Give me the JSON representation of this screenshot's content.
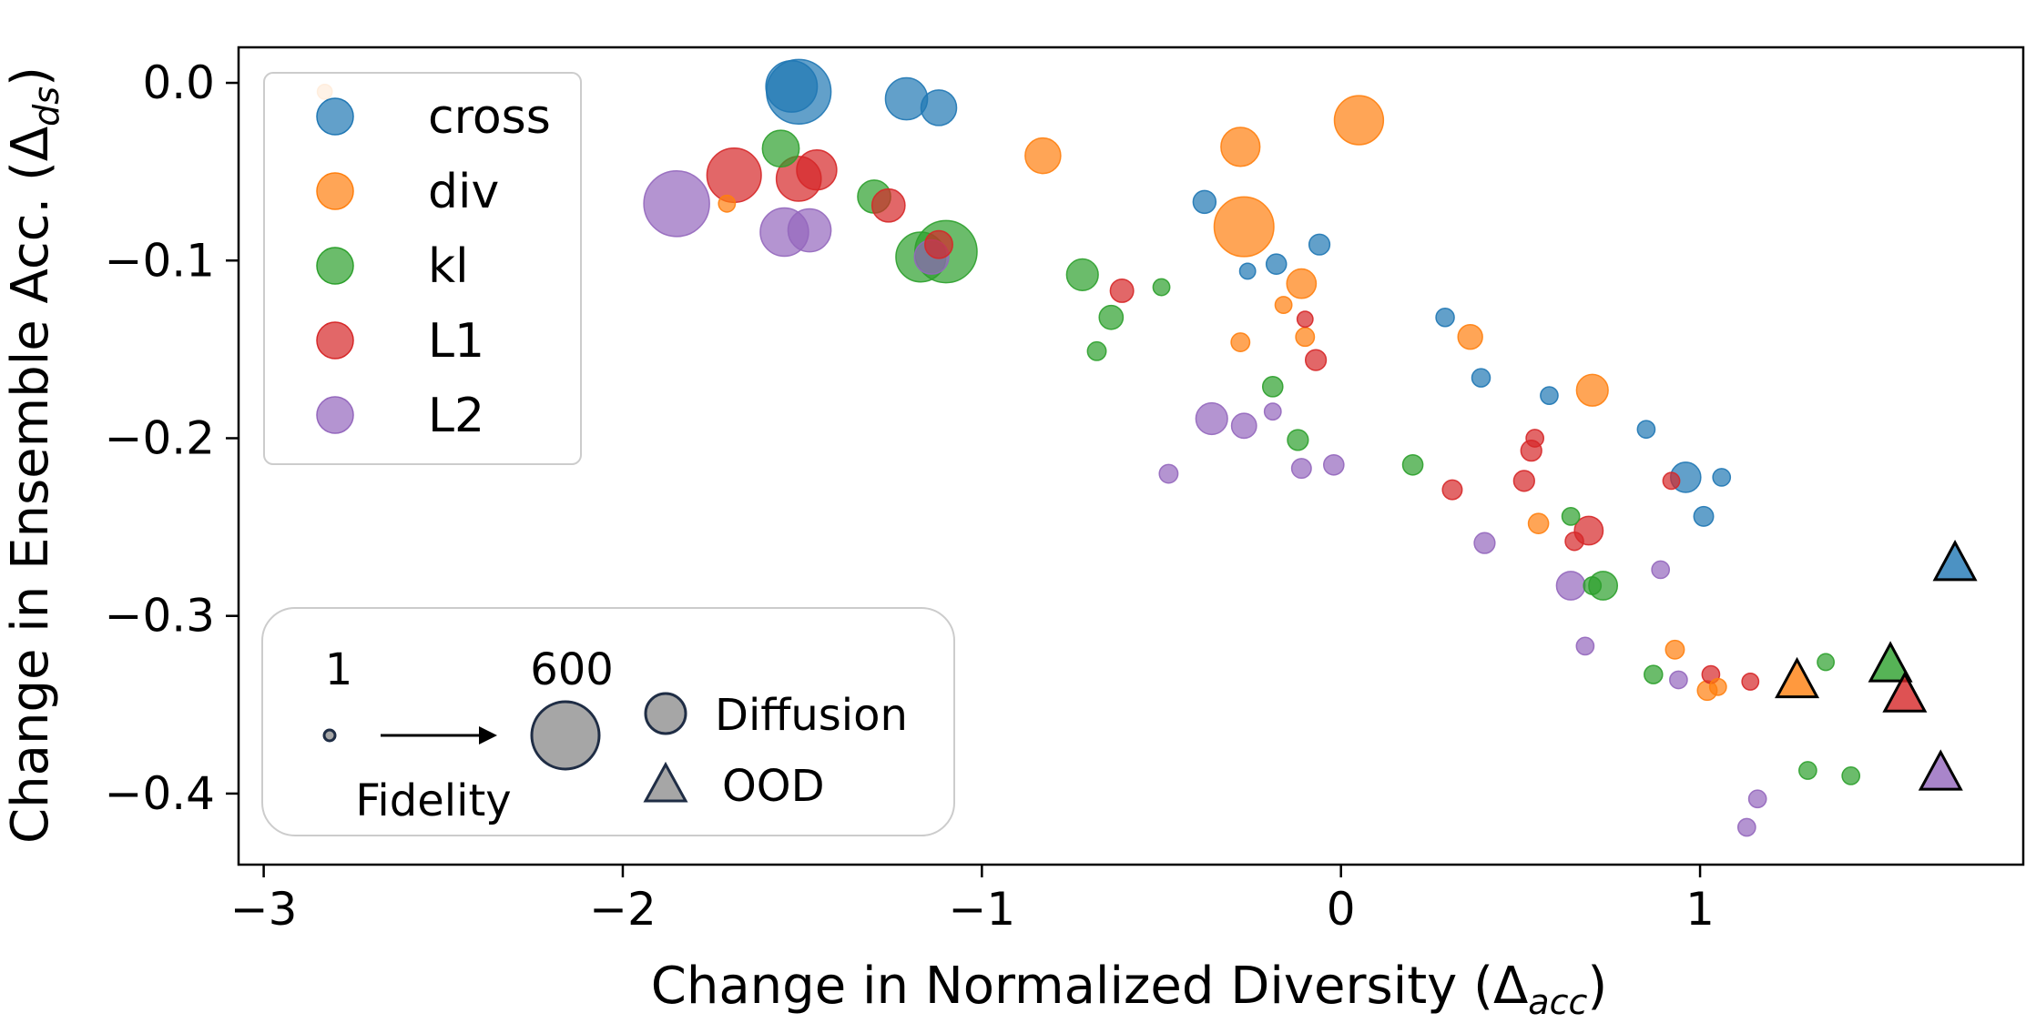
{
  "chart_data": {
    "type": "scatter",
    "title": "",
    "xlabel": "Change in Normalized Diversity (",
    "xlabel_math": "Δ",
    "xlabel_sub": "acc",
    "xlabel_close": ")",
    "ylabel": "Change in Ensemble Acc. (",
    "ylabel_math": "Δ",
    "ylabel_sub": "ds",
    "ylabel_close": ")",
    "xlim": [
      -3.07,
      1.9
    ],
    "ylim": [
      -0.44,
      0.02
    ],
    "xticks": [
      {
        "value": -3,
        "label": "−3"
      },
      {
        "value": -2,
        "label": "−2"
      },
      {
        "value": -1,
        "label": "−1"
      },
      {
        "value": 0,
        "label": "0"
      },
      {
        "value": 1,
        "label": "1"
      }
    ],
    "yticks": [
      {
        "value": 0.0,
        "label": "0.0"
      },
      {
        "value": -0.1,
        "label": "−0.1"
      },
      {
        "value": -0.2,
        "label": "−0.2"
      },
      {
        "value": -0.3,
        "label": "−0.3"
      },
      {
        "value": -0.4,
        "label": "−0.4"
      }
    ],
    "grid": false,
    "legend_position": "top-left",
    "series": [
      {
        "name": "cross",
        "color": "#1f77b4",
        "diffusion": [
          {
            "x": -1.51,
            "y": -0.005,
            "fidelity": 480
          },
          {
            "x": -1.53,
            "y": -0.002,
            "fidelity": 280
          },
          {
            "x": -1.21,
            "y": -0.009,
            "fidelity": 170
          },
          {
            "x": -1.12,
            "y": -0.014,
            "fidelity": 110
          },
          {
            "x": -0.38,
            "y": -0.067,
            "fidelity": 30
          },
          {
            "x": -0.18,
            "y": -0.102,
            "fidelity": 20
          },
          {
            "x": -0.26,
            "y": -0.106,
            "fidelity": 8
          },
          {
            "x": -0.06,
            "y": -0.091,
            "fidelity": 22
          },
          {
            "x": 0.29,
            "y": -0.132,
            "fidelity": 14
          },
          {
            "x": 0.39,
            "y": -0.166,
            "fidelity": 14
          },
          {
            "x": 0.58,
            "y": -0.176,
            "fidelity": 12
          },
          {
            "x": 0.85,
            "y": -0.195,
            "fidelity": 12
          },
          {
            "x": 0.96,
            "y": -0.222,
            "fidelity": 70
          },
          {
            "x": 1.06,
            "y": -0.222,
            "fidelity": 12
          },
          {
            "x": 1.01,
            "y": -0.244,
            "fidelity": 18
          }
        ],
        "ood": {
          "x": 1.71,
          "y": -0.27
        }
      },
      {
        "name": "div",
        "color": "#ff7f0e",
        "diffusion": [
          {
            "x": -2.83,
            "y": -0.005,
            "fidelity": 6
          },
          {
            "x": 0.05,
            "y": -0.021,
            "fidelity": 250
          },
          {
            "x": -0.28,
            "y": -0.036,
            "fidelity": 140
          },
          {
            "x": -0.83,
            "y": -0.041,
            "fidelity": 110
          },
          {
            "x": -0.27,
            "y": -0.081,
            "fidelity": 400
          },
          {
            "x": -0.11,
            "y": -0.113,
            "fidelity": 65
          },
          {
            "x": -0.16,
            "y": -0.125,
            "fidelity": 10
          },
          {
            "x": -0.1,
            "y": -0.143,
            "fidelity": 15
          },
          {
            "x": -0.28,
            "y": -0.146,
            "fidelity": 15
          },
          {
            "x": 0.36,
            "y": -0.143,
            "fidelity": 38
          },
          {
            "x": 0.7,
            "y": -0.173,
            "fidelity": 80
          },
          {
            "x": 0.55,
            "y": -0.248,
            "fidelity": 20
          },
          {
            "x": 0.93,
            "y": -0.319,
            "fidelity": 15
          },
          {
            "x": 1.02,
            "y": -0.342,
            "fidelity": 18
          },
          {
            "x": 1.05,
            "y": -0.34,
            "fidelity": 10
          },
          {
            "x": -1.71,
            "y": -0.068,
            "fidelity": 10
          }
        ],
        "ood": {
          "x": 1.27,
          "y": -0.336
        }
      },
      {
        "name": "kl",
        "color": "#2ca02c",
        "diffusion": [
          {
            "x": -1.56,
            "y": -0.037,
            "fidelity": 120
          },
          {
            "x": -1.3,
            "y": -0.064,
            "fidelity": 90
          },
          {
            "x": -1.1,
            "y": -0.095,
            "fidelity": 440
          },
          {
            "x": -1.17,
            "y": -0.098,
            "fidelity": 260
          },
          {
            "x": -0.72,
            "y": -0.108,
            "fidelity": 80
          },
          {
            "x": -0.5,
            "y": -0.115,
            "fidelity": 10
          },
          {
            "x": -0.64,
            "y": -0.132,
            "fidelity": 35
          },
          {
            "x": -0.68,
            "y": -0.151,
            "fidelity": 15
          },
          {
            "x": -0.19,
            "y": -0.171,
            "fidelity": 20
          },
          {
            "x": -0.12,
            "y": -0.201,
            "fidelity": 22
          },
          {
            "x": 0.2,
            "y": -0.215,
            "fidelity": 20
          },
          {
            "x": 0.64,
            "y": -0.244,
            "fidelity": 12
          },
          {
            "x": 0.73,
            "y": -0.283,
            "fidelity": 60
          },
          {
            "x": 0.7,
            "y": -0.283,
            "fidelity": 12
          },
          {
            "x": 0.87,
            "y": -0.333,
            "fidelity": 14
          },
          {
            "x": 1.35,
            "y": -0.326,
            "fidelity": 10
          },
          {
            "x": 1.3,
            "y": -0.387,
            "fidelity": 12
          },
          {
            "x": 1.42,
            "y": -0.39,
            "fidelity": 12
          }
        ],
        "ood": {
          "x": 1.53,
          "y": -0.327
        }
      },
      {
        "name": "L1",
        "color": "#d62728",
        "diffusion": [
          {
            "x": -1.69,
            "y": -0.052,
            "fidelity": 320
          },
          {
            "x": -1.46,
            "y": -0.049,
            "fidelity": 150
          },
          {
            "x": -1.51,
            "y": -0.054,
            "fidelity": 200
          },
          {
            "x": -1.26,
            "y": -0.069,
            "fidelity": 90
          },
          {
            "x": -1.12,
            "y": -0.091,
            "fidelity": 55
          },
          {
            "x": -0.61,
            "y": -0.117,
            "fidelity": 32
          },
          {
            "x": -0.1,
            "y": -0.133,
            "fidelity": 8
          },
          {
            "x": -0.07,
            "y": -0.156,
            "fidelity": 22
          },
          {
            "x": 0.31,
            "y": -0.229,
            "fidelity": 18
          },
          {
            "x": 0.51,
            "y": -0.224,
            "fidelity": 22
          },
          {
            "x": 0.53,
            "y": -0.207,
            "fidelity": 22
          },
          {
            "x": 0.54,
            "y": -0.2,
            "fidelity": 12
          },
          {
            "x": 0.69,
            "y": -0.252,
            "fidelity": 60
          },
          {
            "x": 0.65,
            "y": -0.258,
            "fidelity": 14
          },
          {
            "x": 0.92,
            "y": -0.224,
            "fidelity": 10
          },
          {
            "x": 1.03,
            "y": -0.333,
            "fidelity": 12
          },
          {
            "x": 1.14,
            "y": -0.337,
            "fidelity": 10
          }
        ],
        "ood": {
          "x": 1.57,
          "y": -0.344
        }
      },
      {
        "name": "L2",
        "color": "#9467bd",
        "diffusion": [
          {
            "x": -1.85,
            "y": -0.068,
            "fidelity": 500
          },
          {
            "x": -1.55,
            "y": -0.084,
            "fidelity": 240
          },
          {
            "x": -1.48,
            "y": -0.083,
            "fidelity": 180
          },
          {
            "x": -1.14,
            "y": -0.098,
            "fidelity": 100
          },
          {
            "x": -0.36,
            "y": -0.189,
            "fidelity": 80
          },
          {
            "x": -0.27,
            "y": -0.193,
            "fidelity": 40
          },
          {
            "x": -0.19,
            "y": -0.185,
            "fidelity": 10
          },
          {
            "x": -0.11,
            "y": -0.217,
            "fidelity": 18
          },
          {
            "x": -0.02,
            "y": -0.215,
            "fidelity": 20
          },
          {
            "x": -0.48,
            "y": -0.22,
            "fidelity": 15
          },
          {
            "x": 0.4,
            "y": -0.259,
            "fidelity": 22
          },
          {
            "x": 0.64,
            "y": -0.283,
            "fidelity": 60
          },
          {
            "x": 0.68,
            "y": -0.317,
            "fidelity": 12
          },
          {
            "x": 0.89,
            "y": -0.274,
            "fidelity": 12
          },
          {
            "x": 0.94,
            "y": -0.336,
            "fidelity": 12
          },
          {
            "x": 1.16,
            "y": -0.403,
            "fidelity": 12
          },
          {
            "x": 1.13,
            "y": -0.419,
            "fidelity": 12
          }
        ],
        "ood": {
          "x": 1.67,
          "y": -0.388
        }
      }
    ],
    "size_legend": {
      "min_label": "1",
      "max_label": "600",
      "min_value": 1,
      "max_value": 600,
      "title": "Fidelity",
      "diffusion_label": "Diffusion",
      "ood_label": "OOD",
      "marker_color": "#a6a6a6",
      "edge_color": "#1f2d45"
    }
  }
}
